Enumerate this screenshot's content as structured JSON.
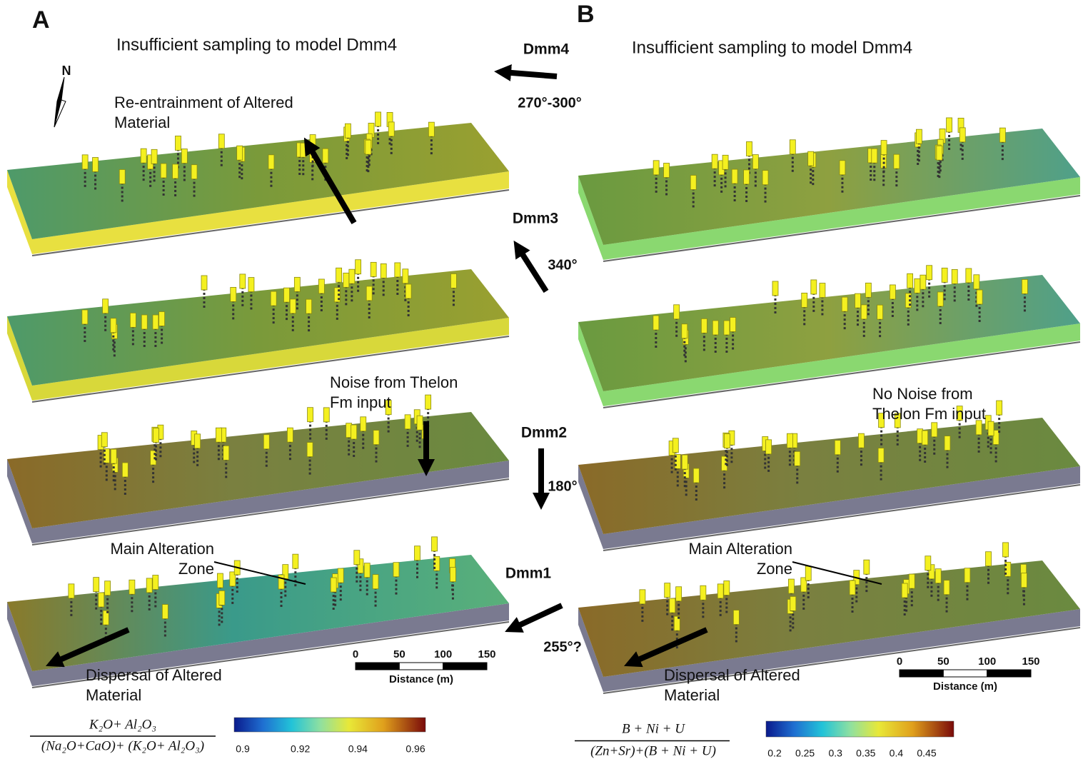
{
  "panels": [
    {
      "letter": "A",
      "note": "Insufficient sampling to model Dmm4",
      "north": "N",
      "annotations": [
        {
          "lines": [
            "Re-entrainment of Altered",
            "Material"
          ]
        },
        {
          "lines": [
            "Noise from Thelon",
            "Fm input"
          ]
        },
        {
          "lines": [
            "Main Alteration",
            "Zone"
          ]
        },
        {
          "lines": [
            "Dispersal of Altered",
            "Material"
          ]
        }
      ],
      "scale": {
        "ticks": [
          "0",
          "50",
          "100",
          "150"
        ],
        "label": "Distance (m)"
      },
      "formula": {
        "numerator": "K₂O+ Al₂O₃",
        "denominator": "(Na₂O+CaO)+ (K₂O+ Al₂O₃)"
      },
      "colorbar_ticks": [
        "0.9",
        "0.92",
        "0.94",
        "0.96"
      ]
    },
    {
      "letter": "B",
      "note": "Insufficient sampling to model Dmm4",
      "annotations": [
        {
          "lines": [
            "No Noise from",
            "Thelon Fm input"
          ]
        },
        {
          "lines": [
            "Main Alteration",
            "Zone"
          ]
        },
        {
          "lines": [
            "Dispersal of Altered",
            "Material"
          ]
        }
      ],
      "scale": {
        "ticks": [
          "0",
          "50",
          "100",
          "150"
        ],
        "label": "Distance (m)"
      },
      "formula": {
        "numerator": "B + Ni + U",
        "denominator": "(Zn+Sr)+(B + Ni + U)"
      },
      "colorbar_ticks": [
        "0.2",
        "0.25",
        "0.3",
        "0.35",
        "0.4",
        "0.45"
      ]
    }
  ],
  "flow": [
    {
      "name": "Dmm4",
      "direction": "270°-300°"
    },
    {
      "name": "Dmm3",
      "direction": "340°"
    },
    {
      "name": "Dmm2",
      "direction": "180°"
    },
    {
      "name": "Dmm1",
      "direction": "255°?"
    }
  ]
}
